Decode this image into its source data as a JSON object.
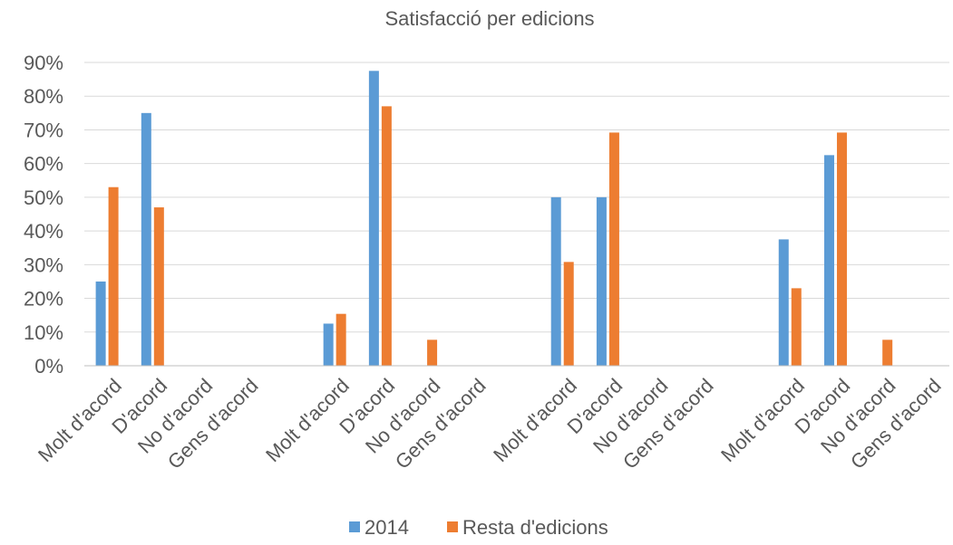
{
  "chart_data": {
    "type": "bar",
    "title": "Satisfacció per edicions",
    "xlabel": "",
    "ylabel": "",
    "ylim": [
      0,
      0.9
    ],
    "yticks": [
      0,
      0.1,
      0.2,
      0.3,
      0.4,
      0.5,
      0.6,
      0.7,
      0.8,
      0.9
    ],
    "ytick_labels": [
      "0%",
      "10%",
      "20%",
      "30%",
      "40%",
      "50%",
      "60%",
      "70%",
      "80%",
      "90%"
    ],
    "grid": true,
    "legend": "bottom",
    "categories": [
      "Molt d'acord",
      "D'acord",
      "No d'acord",
      "Gens d'acord",
      "",
      "Molt d'acord",
      "D'acord",
      "No d'acord",
      "Gens d'acord",
      "",
      "Molt d'acord",
      "D'acord",
      "No d'acord",
      "Gens d'acord",
      "",
      "Molt d'acord",
      "D'acord",
      "No d'acord",
      "Gens d'acord"
    ],
    "series": [
      {
        "name": "2014",
        "color": "#5b9bd5",
        "values": [
          0.25,
          0.75,
          0,
          0,
          null,
          0.125,
          0.875,
          0,
          0,
          null,
          0.5,
          0.5,
          0,
          0,
          null,
          0.375,
          0.625,
          0,
          0
        ]
      },
      {
        "name": "Resta d'edicions",
        "color": "#ed7d31",
        "values": [
          0.53,
          0.47,
          0,
          0,
          null,
          0.154,
          0.77,
          0.077,
          0,
          null,
          0.308,
          0.692,
          0,
          0,
          null,
          0.23,
          0.692,
          0.077,
          0
        ]
      }
    ]
  }
}
